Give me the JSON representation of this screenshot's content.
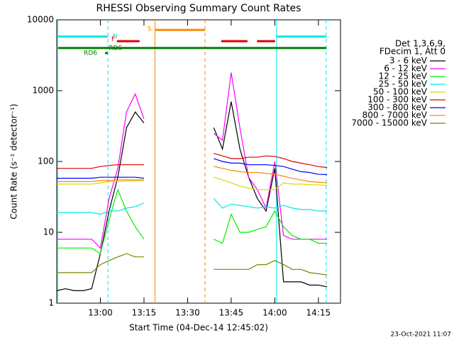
{
  "chart_data": {
    "type": "line",
    "title": "RHESSI Observing Summary Count Rates",
    "x_label": "Start Time (04-Dec-14 12:45:02)",
    "y_label": "Count Rate (s⁻¹ detector⁻¹)",
    "footer": "23-Oct-2021 11:07",
    "legend_title": [
      "Det 1,3,6,9,",
      "FDecim 1, Att 0"
    ],
    "log_y": true,
    "xlim": [
      0,
      97.6
    ],
    "xticks": [
      {
        "value": 15,
        "label": "13:00"
      },
      {
        "value": 30,
        "label": "13:15"
      },
      {
        "value": 45,
        "label": "13:30"
      },
      {
        "value": 60,
        "label": "13:45"
      },
      {
        "value": 75,
        "label": "14:00"
      },
      {
        "value": 90,
        "label": "14:15"
      }
    ],
    "ylim": [
      1,
      10000
    ],
    "yticks": [
      1,
      10,
      100,
      1000,
      10000
    ],
    "x": [
      0,
      3,
      6,
      9,
      12,
      15,
      18,
      21,
      24,
      27,
      30,
      33,
      36,
      39,
      42,
      45,
      48,
      51,
      54,
      57,
      60,
      63,
      66,
      69,
      72,
      75,
      78,
      81,
      84,
      87,
      90,
      93,
      96
    ],
    "series": [
      {
        "name": "3 - 6 keV",
        "color": "#000000",
        "values": [
          1.5,
          1.6,
          1.5,
          1.5,
          1.6,
          5,
          20,
          60,
          300,
          500,
          350,
          null,
          null,
          null,
          null,
          null,
          null,
          null,
          300,
          150,
          700,
          150,
          60,
          30,
          20,
          80,
          2,
          2,
          2,
          1.8,
          1.8,
          1.7,
          null
        ]
      },
      {
        "name": "6 - 12 keV",
        "color": "#ff00ff",
        "values": [
          8,
          8,
          8,
          8,
          8,
          6,
          30,
          80,
          500,
          900,
          400,
          null,
          null,
          null,
          null,
          null,
          null,
          null,
          250,
          200,
          1800,
          300,
          60,
          40,
          22,
          100,
          9,
          8,
          8,
          8,
          8,
          8,
          null
        ]
      },
      {
        "name": "12 - 25 keV",
        "color": "#00ee00",
        "values": [
          6,
          6,
          6,
          6,
          6,
          5,
          15,
          40,
          20,
          12,
          8,
          null,
          null,
          null,
          null,
          null,
          null,
          null,
          8,
          7,
          18,
          10,
          10,
          11,
          12,
          20,
          12,
          9,
          8,
          8,
          7,
          7,
          null
        ]
      },
      {
        "name": "25 - 50 keV",
        "color": "#00e8e8",
        "values": [
          19,
          19,
          19,
          19,
          19,
          18,
          20,
          20,
          22,
          23,
          26,
          null,
          null,
          null,
          null,
          null,
          null,
          null,
          30,
          22,
          25,
          24,
          23,
          22,
          23,
          22,
          24,
          22,
          21,
          21,
          20,
          20,
          null
        ]
      },
      {
        "name": "50 - 100 keV",
        "color": "#d8d800",
        "values": [
          48,
          48,
          48,
          48,
          48,
          50,
          52,
          52,
          53,
          53,
          54,
          null,
          null,
          null,
          null,
          null,
          null,
          null,
          60,
          55,
          50,
          45,
          42,
          40,
          40,
          40,
          50,
          48,
          48,
          47,
          47,
          46,
          null
        ]
      },
      {
        "name": "100 - 300 keV",
        "color": "#e00000",
        "values": [
          80,
          80,
          80,
          80,
          80,
          85,
          88,
          90,
          90,
          90,
          90,
          null,
          null,
          null,
          null,
          null,
          null,
          null,
          130,
          120,
          110,
          110,
          115,
          115,
          120,
          118,
          110,
          100,
          95,
          90,
          85,
          82,
          null
        ]
      },
      {
        "name": "300 - 800 keV",
        "color": "#0000ff",
        "values": [
          58,
          58,
          58,
          58,
          58,
          60,
          60,
          60,
          60,
          60,
          58,
          null,
          null,
          null,
          null,
          null,
          null,
          null,
          110,
          100,
          95,
          95,
          90,
          90,
          90,
          88,
          85,
          78,
          72,
          70,
          66,
          65,
          null
        ]
      },
      {
        "name": "800 - 7000 keV",
        "color": "#ff8800",
        "values": [
          52,
          52,
          52,
          52,
          52,
          54,
          54,
          55,
          55,
          55,
          55,
          null,
          null,
          null,
          null,
          null,
          null,
          null,
          85,
          80,
          75,
          72,
          70,
          70,
          68,
          66,
          62,
          58,
          55,
          52,
          51,
          50,
          null
        ]
      },
      {
        "name": "7000 - 15000 keV",
        "color": "#808000",
        "values": [
          2.7,
          2.7,
          2.7,
          2.7,
          2.7,
          3.5,
          4,
          4.5,
          5,
          4.5,
          4.5,
          null,
          null,
          null,
          null,
          null,
          null,
          null,
          3,
          3,
          3,
          3,
          3,
          3.5,
          3.5,
          4,
          3.5,
          3,
          3,
          2.7,
          2.6,
          2.5,
          null
        ]
      }
    ],
    "bars": [
      {
        "color": "#00e8e8",
        "x": [
          0.5,
          17.6
        ],
        "y": 5800
      },
      {
        "color": "#00e8e8",
        "x": [
          75.6,
          92.7
        ],
        "y": 5800
      },
      {
        "color": "#ff8800",
        "x": [
          33.8,
          51.0
        ],
        "y": 7200
      },
      {
        "color": "#e00000",
        "x": [
          20.7,
          28.5
        ],
        "y": 5000
      },
      {
        "color": "#e00000",
        "x": [
          56.6,
          65.6
        ],
        "y": 5000
      },
      {
        "color": "#e00000",
        "x": [
          68.9,
          75.1
        ],
        "y": 5000
      },
      {
        "color": "#008000",
        "x": [
          0.5,
          92.7
        ],
        "y": 4000
      },
      {
        "color": "#008000",
        "x": [
          16.6,
          17.6
        ],
        "y": 3400
      }
    ],
    "annotations": [
      {
        "text": "N",
        "color": "#00e8e8",
        "x": 19.2,
        "y": 5800
      },
      {
        "text": "F",
        "color": "#e00000",
        "x": 18.8,
        "y": 5300
      },
      {
        "text": "S",
        "color": "#ff8800",
        "x": 31.2,
        "y": 7400
      },
      {
        "text": "RD6",
        "color": "#008000",
        "x": 9.3,
        "y": 3400
      },
      {
        "text": "RDS",
        "color": "#008000",
        "x": 17.9,
        "y": 4000
      }
    ],
    "vlines": [
      {
        "x": 0.3,
        "color": "#00e8e8",
        "dashed": false
      },
      {
        "x": 17.6,
        "color": "#00e8e8",
        "dashed": true
      },
      {
        "x": 33.8,
        "color": "#ff8800",
        "dashed": false
      },
      {
        "x": 51.0,
        "color": "#ff8800",
        "dashed": true
      },
      {
        "x": 75.6,
        "color": "#00e8e8",
        "dashed": false
      },
      {
        "x": 92.7,
        "color": "#00e8e8",
        "dashed": true
      }
    ]
  }
}
